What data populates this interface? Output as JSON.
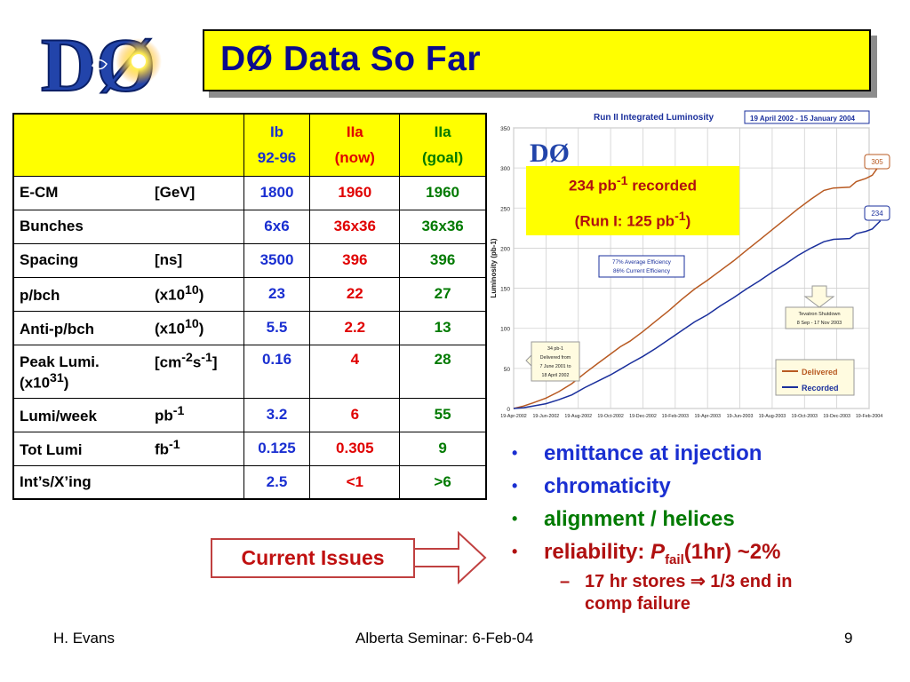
{
  "slide": {
    "title": "DØ Data So Far",
    "logo_text": "DØ",
    "footer": {
      "left": "H. Evans",
      "center": "Alberta Seminar: 6-Feb-04",
      "right": "9"
    }
  },
  "table": {
    "columns": [
      {
        "line1": "Ib",
        "line2": "92-96",
        "color": "#1a2fd1"
      },
      {
        "line1": "IIa",
        "line2": "(now)",
        "color": "#e00000"
      },
      {
        "line1": "IIa",
        "line2": "(goal)",
        "color": "#007a00"
      }
    ],
    "rows": [
      {
        "param": "E-CM",
        "unit_html": "[GeV]",
        "values": [
          "1800",
          "1960",
          "1960"
        ]
      },
      {
        "param": "Bunches",
        "unit_html": "",
        "values": [
          "6x6",
          "36x36",
          "36x36"
        ]
      },
      {
        "param": "Spacing",
        "unit_html": "[ns]",
        "values": [
          "3500",
          "396",
          "396"
        ]
      },
      {
        "param": "p/bch",
        "unit_html": "(x10<sup>10</sup>)",
        "values": [
          "23",
          "22",
          "27"
        ]
      },
      {
        "param": "Anti-p/bch",
        "unit_html": "(x10<sup>10</sup>)",
        "values": [
          "5.5",
          "2.2",
          "13"
        ]
      },
      {
        "param": "Peak Lumi.",
        "unit_html": "[cm<sup>-2</sup>s<sup>-1</sup>]",
        "param_line2_html": "(x10<sup>31</sup>)",
        "values": [
          "0.16",
          "4",
          "28"
        ]
      },
      {
        "param": "Lumi/week",
        "unit_html": "pb<sup>-1</sup>",
        "values": [
          "3.2",
          "6",
          "55"
        ]
      },
      {
        "param": "Tot Lumi",
        "unit_html": "fb<sup>-1</sup>",
        "values": [
          "0.125",
          "0.305",
          "9"
        ]
      },
      {
        "param": "Int’s/X’ing",
        "unit_html": "",
        "values": [
          "2.5",
          "<1",
          ">6"
        ]
      }
    ]
  },
  "callout": {
    "line1_html": "234 pb<sup>-1</sup> recorded",
    "line2_html": "(Run I: 125 pb<sup>-1</sup>)"
  },
  "bullets": [
    {
      "text_html": "emittance at injection",
      "color": "#1a2fd1"
    },
    {
      "text_html": "chromaticity",
      "color": "#1a2fd1"
    },
    {
      "text_html": "alignment / helices",
      "color": "#007a00"
    },
    {
      "text_html": "reliability: <i>P</i><sub style=\"font-size:15px\">fail</sub>(1hr) ~2%",
      "color": "#b01010"
    }
  ],
  "sub_bullet": {
    "text_html": "17 hr stores &#8658; 1/3 end in<br>comp failure"
  },
  "issues_label": "Current Issues",
  "chart_data": {
    "type": "line",
    "title": "Run II Integrated Luminosity",
    "date_range": "19 April 2002 - 15 January 2004",
    "ylabel": "Luminosity (pb-1)",
    "ylim": [
      0,
      350
    ],
    "yticks": [
      0,
      50,
      100,
      150,
      200,
      250,
      300,
      350
    ],
    "xticks": [
      "19-Apr-2002",
      "19-Jun-2002",
      "19-Aug-2002",
      "19-Oct-2002",
      "19-Dec-2002",
      "19-Feb-2003",
      "19-Apr-2003",
      "19-Jun-2003",
      "19-Aug-2003",
      "19-Oct-2003",
      "19-Dec-2003",
      "19-Feb-2004"
    ],
    "grid": true,
    "legend": "bottom-right",
    "series": [
      {
        "name": "Delivered",
        "color": "#b85a22",
        "end_label": "305",
        "x": [
          0,
          0.3,
          0.6,
          1,
          1.4,
          1.8,
          2.2,
          2.6,
          3,
          3.3,
          3.6,
          4,
          4.4,
          4.8,
          5.2,
          5.6,
          6,
          6.4,
          6.8,
          7.2,
          7.6,
          8,
          8.4,
          8.8,
          9.2,
          9.6,
          9.9,
          10.4,
          10.6,
          10.9,
          11.1,
          11.35
        ],
        "y": [
          0,
          3,
          7,
          13,
          21,
          31,
          44,
          56,
          68,
          77,
          84,
          96,
          109,
          122,
          136,
          149,
          160,
          172,
          184,
          197,
          210,
          223,
          236,
          249,
          261,
          272,
          275,
          276,
          283,
          287,
          291,
          305
        ]
      },
      {
        "name": "Recorded",
        "color": "#1a2f9c",
        "end_label": "234",
        "x": [
          0,
          0.3,
          0.6,
          1,
          1.4,
          1.8,
          2.2,
          2.6,
          3,
          3.3,
          3.6,
          4,
          4.4,
          4.8,
          5.2,
          5.6,
          6,
          6.4,
          6.8,
          7.2,
          7.6,
          8,
          8.4,
          8.8,
          9.2,
          9.6,
          9.9,
          10.4,
          10.6,
          10.9,
          11.1,
          11.35
        ],
        "y": [
          0,
          1,
          3,
          6,
          11,
          17,
          26,
          34,
          42,
          49,
          56,
          65,
          75,
          86,
          97,
          108,
          117,
          128,
          138,
          149,
          159,
          170,
          180,
          191,
          200,
          208,
          211,
          212,
          218,
          221,
          224,
          234
        ]
      }
    ],
    "annotations": [
      {
        "lines": [
          "77% Average Efficiency",
          "86% Current Efficiency"
        ]
      },
      {
        "lines": [
          "Tevatron Shutdown",
          "8 Sep - 17 Nov 2003"
        ]
      },
      {
        "lines": [
          "34 pb-1",
          "Delivered from",
          "7 June 2001 to",
          "18 April 2002"
        ]
      }
    ]
  }
}
